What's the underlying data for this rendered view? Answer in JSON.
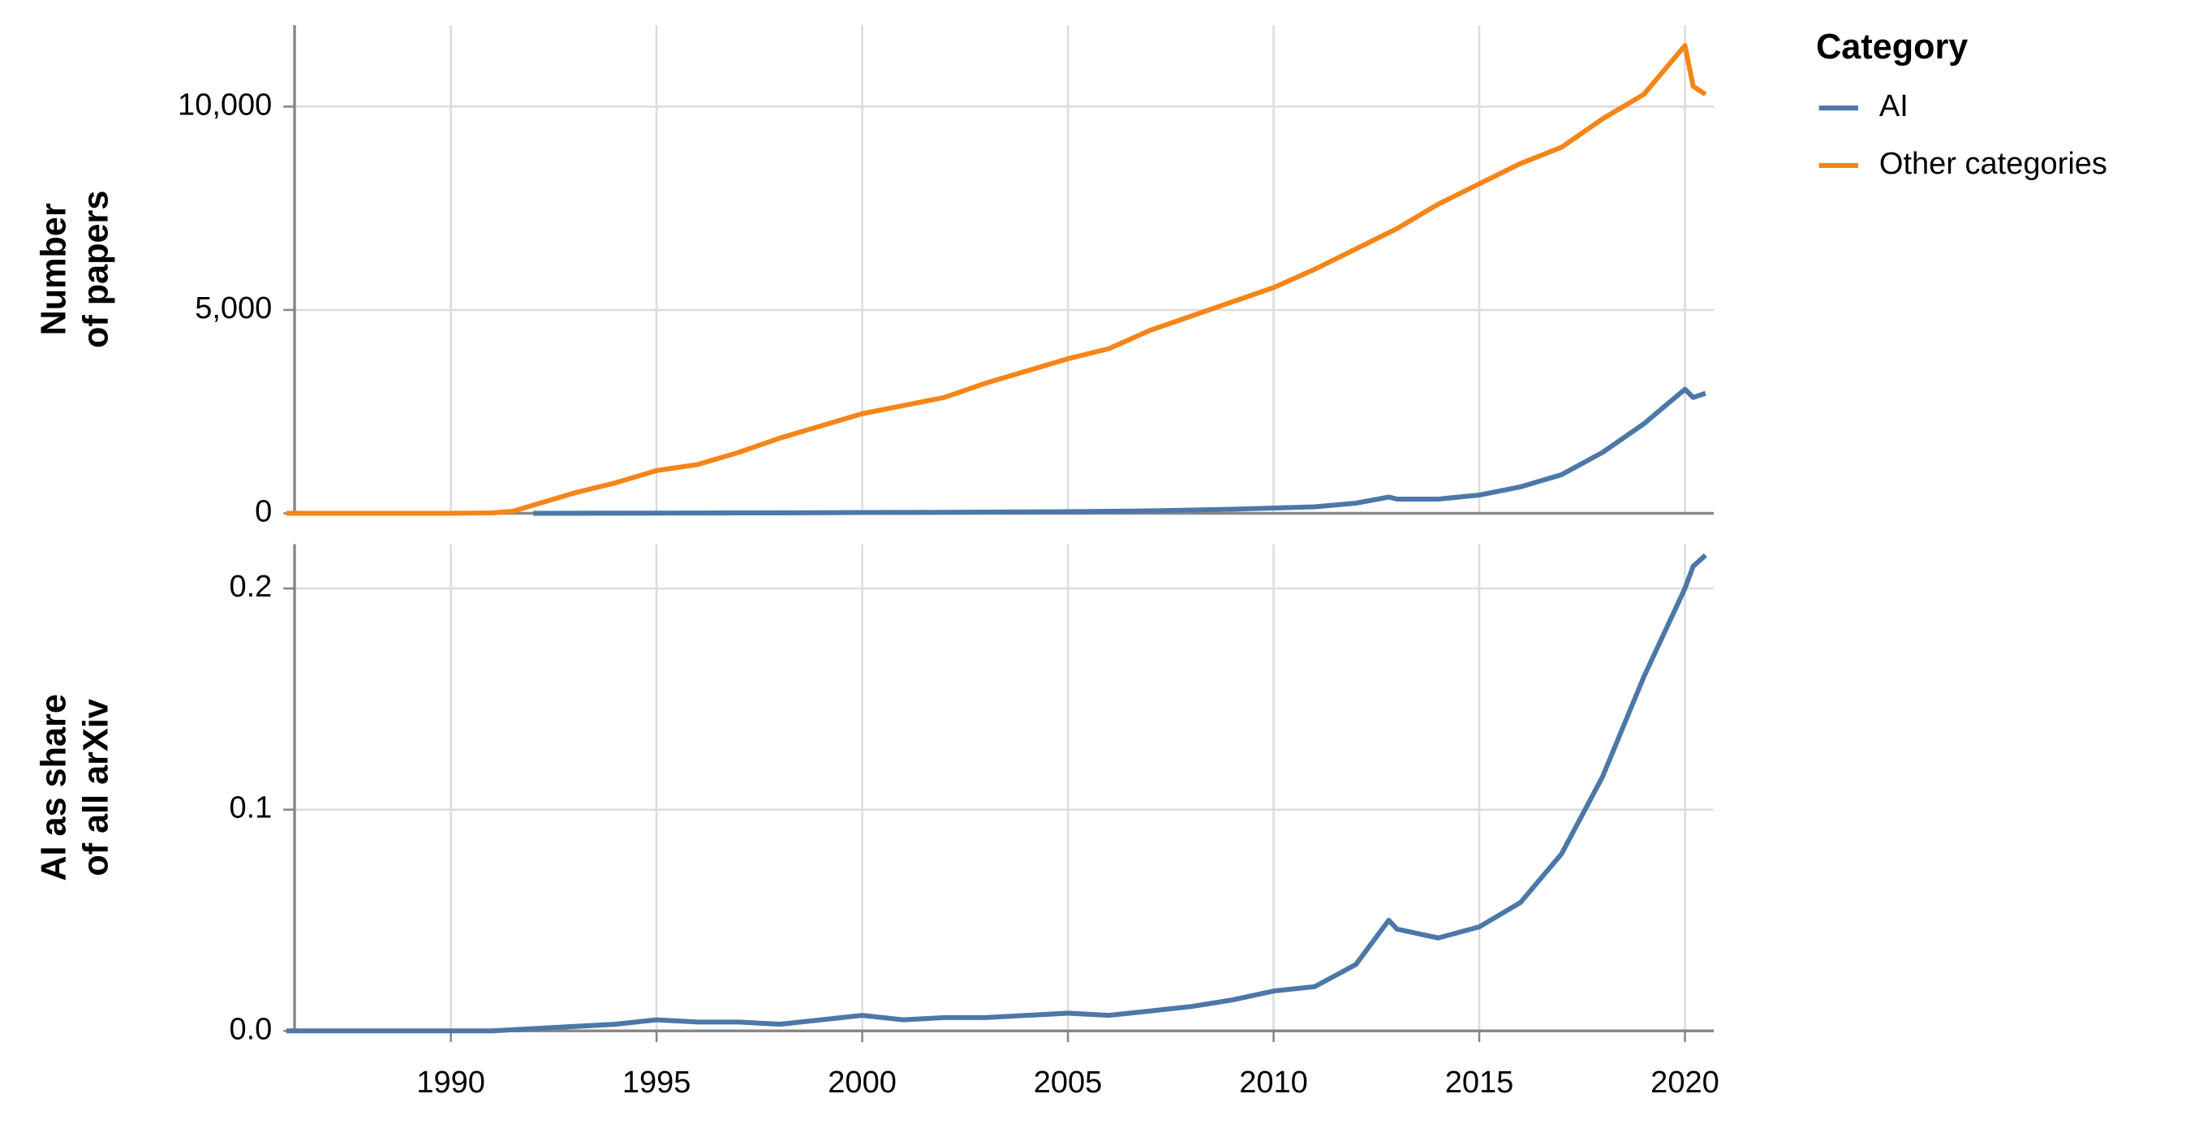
{
  "chart_data": [
    {
      "type": "line",
      "y_label": [
        "Number",
        "of papers"
      ],
      "legend_title": "Category",
      "legend": "right",
      "grid": true,
      "x": [
        1986,
        1988,
        1990,
        1991,
        1991.5,
        1992,
        1993,
        1994,
        1995,
        1996,
        1997,
        1998,
        1999,
        2000,
        2001,
        2002,
        2003,
        2004,
        2005,
        2006,
        2007,
        2008,
        2009,
        2010,
        2011,
        2012,
        2012.8,
        2013,
        2014,
        2015,
        2016,
        2017,
        2018,
        2019,
        2020,
        2020.2,
        2020.5
      ],
      "series": [
        {
          "name": "AI",
          "color": "#4c78a8",
          "values": [
            null,
            null,
            null,
            null,
            null,
            0,
            2,
            4,
            6,
            8,
            10,
            12,
            15,
            20,
            22,
            25,
            30,
            35,
            40,
            50,
            60,
            80,
            100,
            130,
            160,
            250,
            400,
            350,
            350,
            450,
            650,
            950,
            1500,
            2200,
            3050,
            2850,
            2950
          ]
        },
        {
          "name": "Other categories",
          "color": "#f58518",
          "values": [
            0,
            0,
            0,
            10,
            50,
            200,
            500,
            750,
            1050,
            1200,
            1500,
            1850,
            2150,
            2450,
            2650,
            2850,
            3200,
            3500,
            3800,
            4050,
            4500,
            4850,
            5200,
            5550,
            6000,
            6500,
            6900,
            7000,
            7600,
            8100,
            8600,
            9000,
            9700,
            10300,
            11500,
            10500,
            10300
          ]
        }
      ],
      "xlim": [
        1986.2,
        2020.7
      ],
      "xticks": [
        1990,
        1995,
        2000,
        2005,
        2010,
        2015,
        2020
      ],
      "ylim": [
        0,
        12000
      ],
      "yticks": [
        0,
        {
          "value": 5000,
          "label": "5,000"
        },
        {
          "value": 10000,
          "label": "10,000"
        }
      ]
    },
    {
      "type": "line",
      "y_label": [
        "AI as share",
        "of all arXiv"
      ],
      "grid": true,
      "x": [
        1986,
        1988,
        1990,
        1991,
        1991.5,
        1992,
        1993,
        1994,
        1995,
        1996,
        1997,
        1998,
        1999,
        2000,
        2001,
        2002,
        2003,
        2004,
        2005,
        2006,
        2007,
        2008,
        2009,
        2010,
        2011,
        2012,
        2012.8,
        2013,
        2014,
        2015,
        2016,
        2017,
        2018,
        2019,
        2020,
        2020.2,
        2020.5
      ],
      "series": [
        {
          "name": "AI",
          "color": "#4c78a8",
          "values": [
            0,
            0,
            0,
            0,
            0.0005,
            0.001,
            0.002,
            0.003,
            0.005,
            0.004,
            0.004,
            0.003,
            0.005,
            0.007,
            0.005,
            0.006,
            0.006,
            0.007,
            0.008,
            0.007,
            0.009,
            0.011,
            0.014,
            0.018,
            0.02,
            0.03,
            0.05,
            0.046,
            0.042,
            0.047,
            0.058,
            0.08,
            0.115,
            0.16,
            0.2,
            0.21,
            0.215
          ]
        }
      ],
      "xlim": [
        1986.2,
        2020.7
      ],
      "xticks": [
        1990,
        1995,
        2000,
        2005,
        2010,
        2015,
        2020
      ],
      "ylim": [
        0,
        0.22
      ],
      "yticks": [
        {
          "value": 0,
          "label": "0.0"
        },
        0.1,
        0.2
      ]
    }
  ]
}
